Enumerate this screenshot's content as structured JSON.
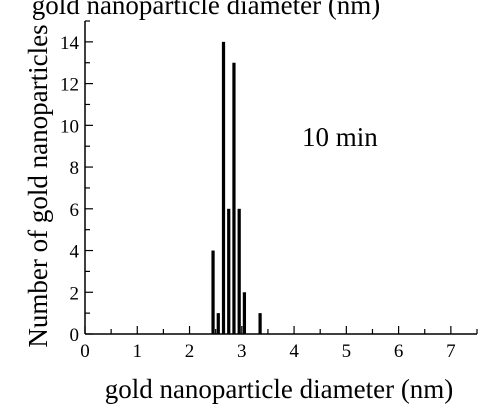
{
  "chart_data": {
    "type": "bar",
    "title": "",
    "annotation": "10 min",
    "xlabel": "gold nanoparticle diameter (nm)",
    "ylabel": "Number of gold nanoparticles",
    "top_clipped_text": "gold nanoparticle diameter (nm)",
    "xlim": [
      0,
      7.5
    ],
    "ylim": [
      0,
      15
    ],
    "x_ticks": [
      "0",
      "1",
      "2",
      "3",
      "4",
      "5",
      "6",
      "7"
    ],
    "y_ticks": [
      "0",
      "2",
      "4",
      "6",
      "8",
      "10",
      "12",
      "14"
    ],
    "bar_width": 0.1,
    "bar_color": "#000000",
    "grid": false,
    "bars": [
      {
        "x": 2.45,
        "y": 4
      },
      {
        "x": 2.55,
        "y": 1
      },
      {
        "x": 2.65,
        "y": 14
      },
      {
        "x": 2.75,
        "y": 6
      },
      {
        "x": 2.85,
        "y": 13
      },
      {
        "x": 2.95,
        "y": 6
      },
      {
        "x": 3.05,
        "y": 2
      },
      {
        "x": 3.35,
        "y": 1
      }
    ]
  }
}
